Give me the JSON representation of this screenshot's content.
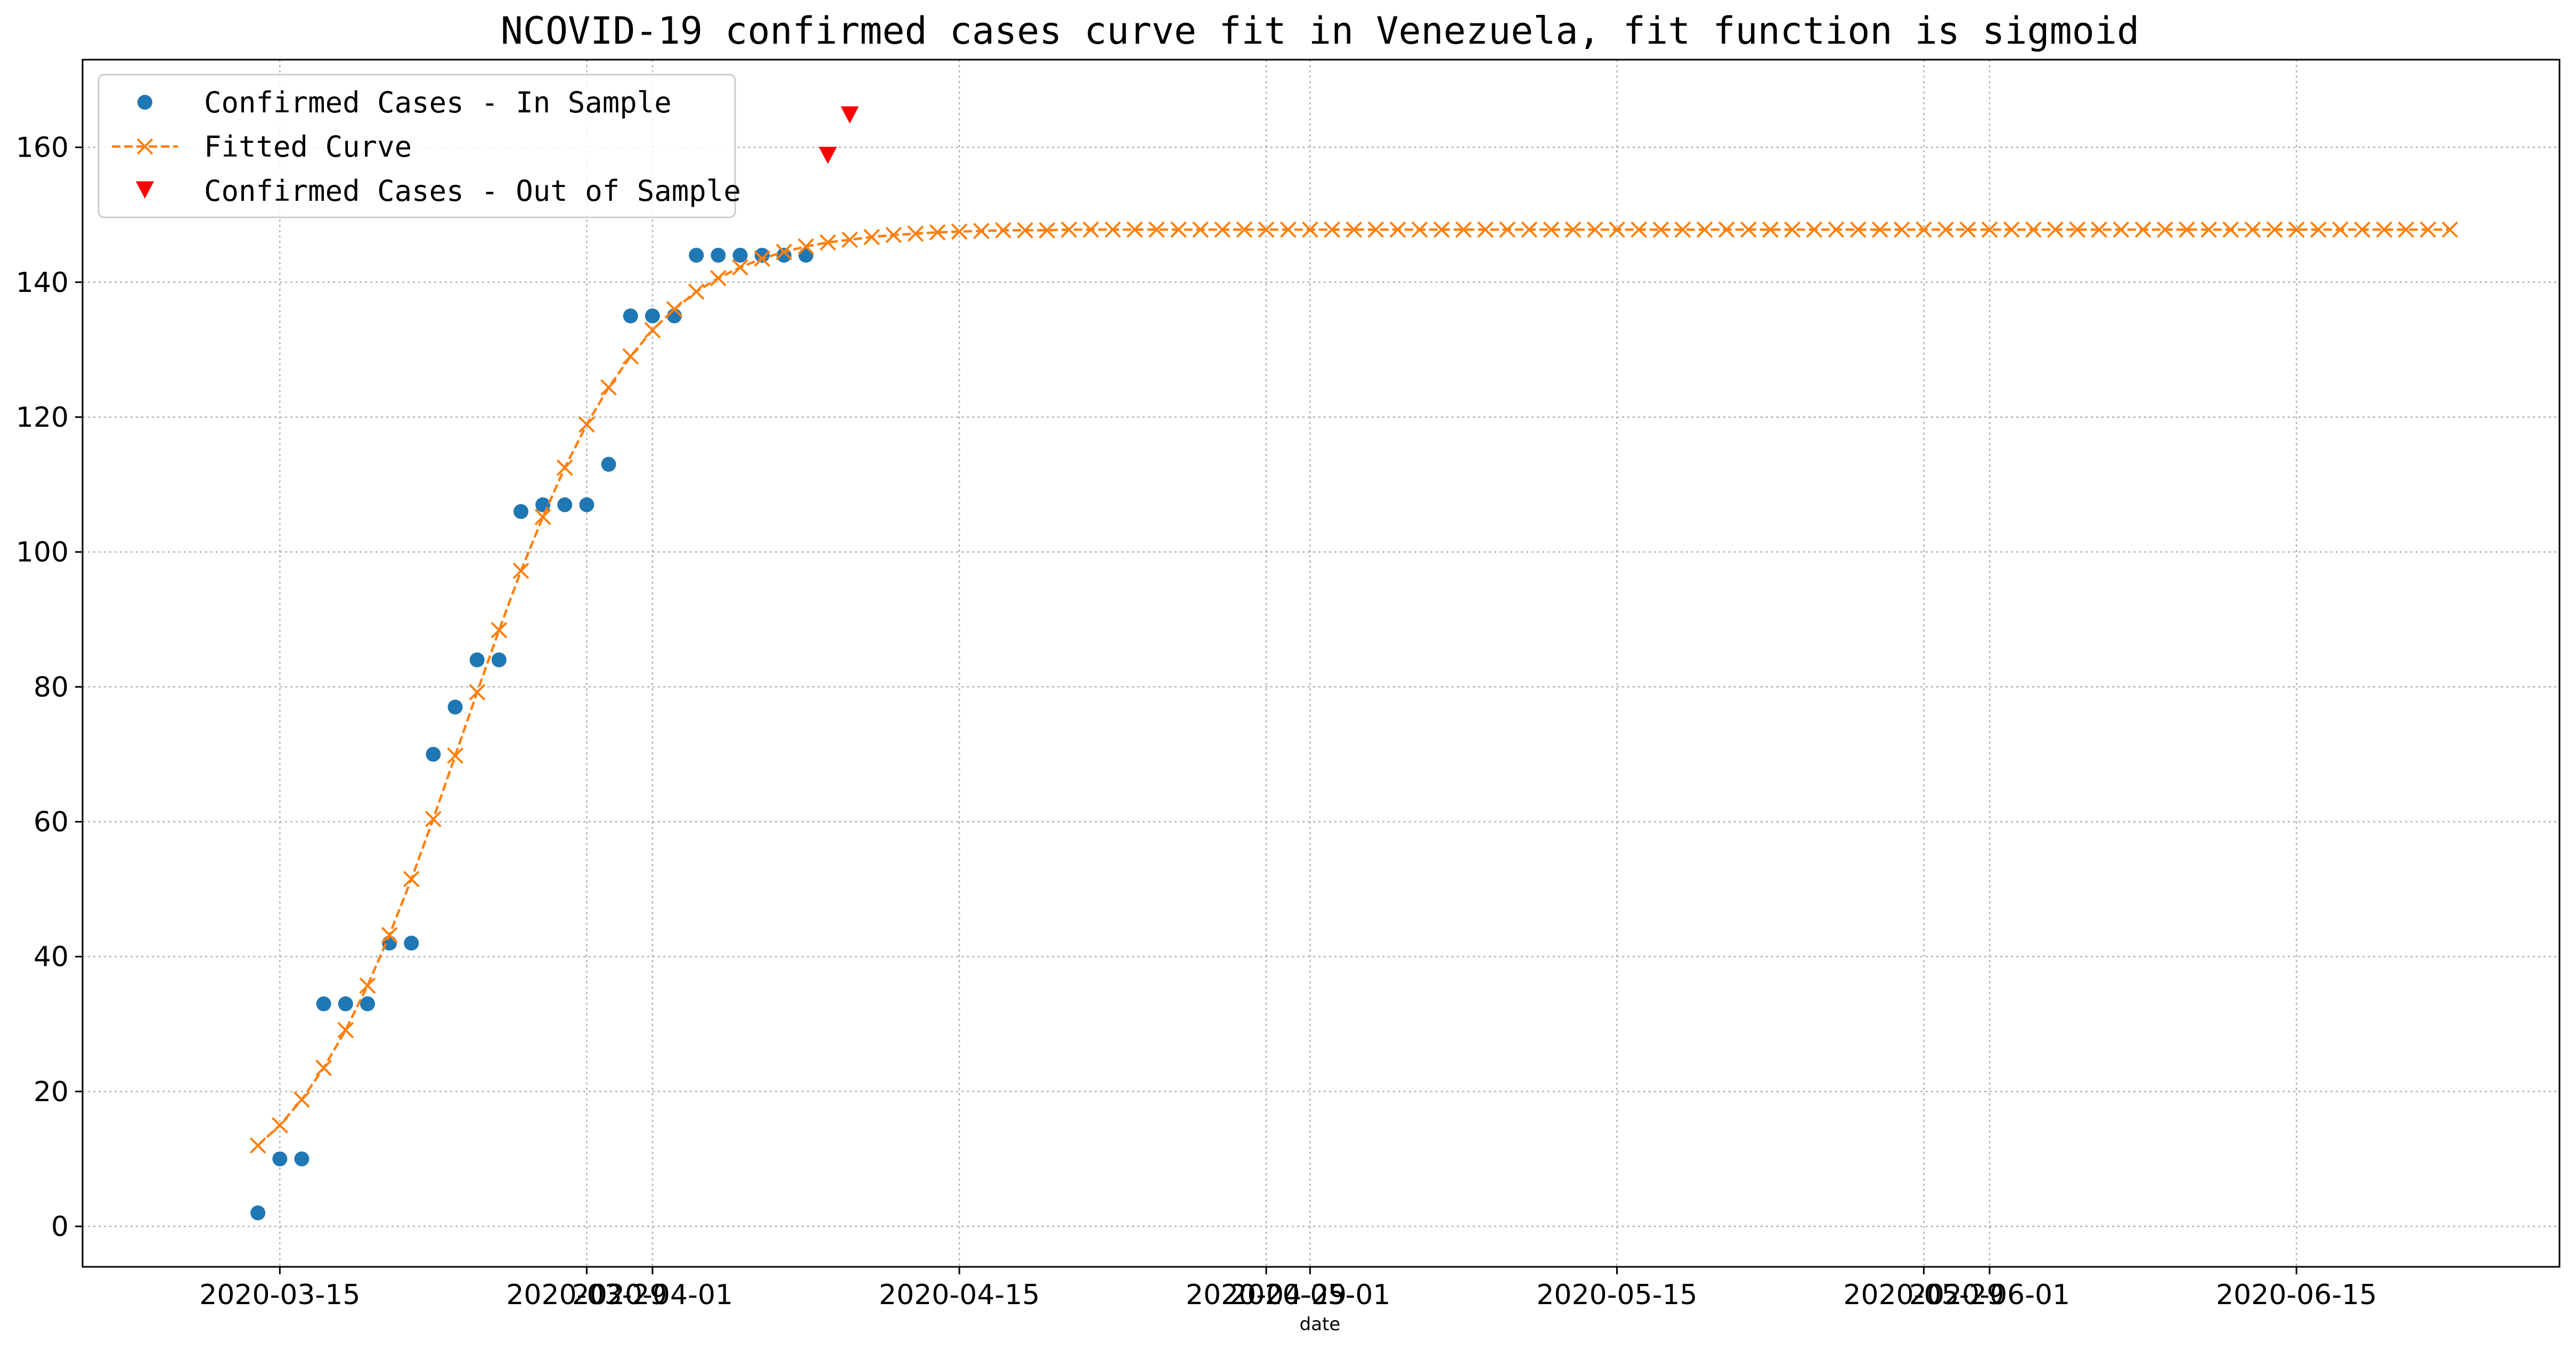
{
  "chart_data": {
    "type": "line",
    "title": "NCOVID-19 confirmed cases curve fit in Venezuela, fit function is sigmoid",
    "xlabel": "date",
    "ylabel": "",
    "x_range": [
      "2020-03-06",
      "2020-06-27"
    ],
    "ylim": [
      -6,
      173
    ],
    "grid": true,
    "legend_position": "top-left",
    "x_ticks": [
      {
        "date": "2020-03-15",
        "label": "2020-03-15"
      },
      {
        "date": "2020-03-29",
        "label": "2020-03-29"
      },
      {
        "date": "2020-04-01",
        "label": "2020-04-01"
      },
      {
        "date": "2020-04-15",
        "label": "2020-04-15"
      },
      {
        "date": "2020-04-29",
        "label": "2020-04-29"
      },
      {
        "date": "2020-05-01",
        "label": "2020-05-01"
      },
      {
        "date": "2020-05-15",
        "label": "2020-05-15"
      },
      {
        "date": "2020-05-29",
        "label": "2020-05-29"
      },
      {
        "date": "2020-06-01",
        "label": "2020-06-01"
      },
      {
        "date": "2020-06-15",
        "label": "2020-06-15"
      }
    ],
    "y_ticks": [
      {
        "value": 0,
        "label": "0"
      },
      {
        "value": 20,
        "label": "20"
      },
      {
        "value": 40,
        "label": "40"
      },
      {
        "value": 60,
        "label": "60"
      },
      {
        "value": 80,
        "label": "80"
      },
      {
        "value": 100,
        "label": "100"
      },
      {
        "value": 120,
        "label": "120"
      },
      {
        "value": 140,
        "label": "140"
      },
      {
        "value": 160,
        "label": "160"
      }
    ],
    "series": [
      {
        "name": "Confirmed Cases - In Sample",
        "style": "markers",
        "marker": "circle",
        "color": "#1f77b4",
        "x": [
          "2020-03-14",
          "2020-03-15",
          "2020-03-16",
          "2020-03-17",
          "2020-03-18",
          "2020-03-19",
          "2020-03-20",
          "2020-03-21",
          "2020-03-22",
          "2020-03-23",
          "2020-03-24",
          "2020-03-25",
          "2020-03-26",
          "2020-03-27",
          "2020-03-28",
          "2020-03-29",
          "2020-03-30",
          "2020-03-31",
          "2020-04-01",
          "2020-04-02",
          "2020-04-03",
          "2020-04-04",
          "2020-04-05",
          "2020-04-06",
          "2020-04-07",
          "2020-04-08"
        ],
        "y": [
          2,
          10,
          10,
          33,
          33,
          33,
          42,
          42,
          70,
          77,
          84,
          84,
          106,
          107,
          107,
          107,
          113,
          135,
          135,
          135,
          144,
          144,
          144,
          144,
          144,
          144
        ]
      },
      {
        "name": "Fitted Curve",
        "style": "dashed-line-x-markers",
        "marker": "x",
        "color": "#ff7f0e",
        "x_start": "2020-03-14",
        "x_end": "2020-06-22",
        "y": [
          12,
          15,
          18.8,
          23.5,
          29.1,
          35.7,
          43.2,
          51.5,
          60.4,
          69.8,
          79.2,
          88.4,
          97.2,
          105.2,
          112.5,
          118.9,
          124.4,
          129,
          132.9,
          136,
          138.6,
          140.6,
          142.2,
          143.5,
          144.5,
          145.3,
          145.9,
          146.3,
          146.7,
          147,
          147.2,
          147.4,
          147.5,
          147.6,
          147.7,
          147.7,
          147.7,
          147.8,
          147.8,
          147.8,
          147.8,
          147.8,
          147.8,
          147.8,
          147.8,
          147.8,
          147.8,
          147.8,
          147.8,
          147.8,
          147.8,
          147.8,
          147.8,
          147.8,
          147.8,
          147.8,
          147.8,
          147.8,
          147.8,
          147.8,
          147.8,
          147.8,
          147.8,
          147.8,
          147.8,
          147.8,
          147.8,
          147.8,
          147.8,
          147.8,
          147.8,
          147.8,
          147.8,
          147.8,
          147.8,
          147.8,
          147.8,
          147.8,
          147.8,
          147.8,
          147.8,
          147.8,
          147.8,
          147.8,
          147.8,
          147.8,
          147.8,
          147.8,
          147.8,
          147.8,
          147.8,
          147.8,
          147.8,
          147.8,
          147.8,
          147.8,
          147.8,
          147.8,
          147.8,
          147.8,
          147.8
        ]
      },
      {
        "name": "Confirmed Cases - Out of Sample",
        "style": "markers",
        "marker": "triangle-down",
        "color": "#ff0000",
        "x": [
          "2020-04-09",
          "2020-04-10"
        ],
        "y": [
          159,
          165
        ]
      }
    ]
  }
}
